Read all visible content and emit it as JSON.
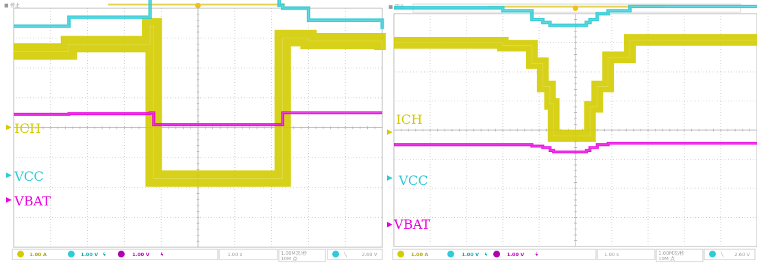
{
  "chart_data": [
    {
      "type": "line",
      "status_text": "■ 停止",
      "channel_labels": [
        "ICH",
        "VCC",
        "VBAT"
      ],
      "readout": {
        "ch1": "1.00 A",
        "ch2": "1.00 V",
        "ch3": "1.00 V",
        "timebase": "1.00 s",
        "rate_line1": "1.00M次/秒",
        "rate_line2": "10M 点",
        "trigger_level": "2.60 V"
      },
      "x": [
        -5.0,
        -3.5,
        -1.3,
        -1.2,
        -0.3,
        0.0,
        0.5,
        2.2,
        2.3,
        3.0,
        5.0
      ],
      "series": [
        {
          "name": "ICH",
          "color": "#d4cc00",
          "band": 0.55,
          "values": [
            2.55,
            2.8,
            3.4,
            -1.7,
            -1.7,
            -1.7,
            -1.7,
            -1.7,
            3.0,
            2.9,
            2.6
          ]
        },
        {
          "name": "VCC",
          "color": "#2fcbd6",
          "band": 0.12,
          "values": [
            3.4,
            3.7,
            4.7,
            4.9,
            5.1,
            5.2,
            5.0,
            4.1,
            4.0,
            3.6,
            3.3
          ]
        },
        {
          "name": "VBAT",
          "color": "#e800e0",
          "band": 0.1,
          "values": [
            0.45,
            0.47,
            0.5,
            0.1,
            0.1,
            0.1,
            0.1,
            0.1,
            0.5,
            0.5,
            0.5
          ]
        }
      ]
    },
    {
      "type": "line",
      "status_text": "■ 预览",
      "channel_labels": [
        "ICH",
        "VCC",
        "VBAT"
      ],
      "readout": {
        "ch1": "1.00 A",
        "ch2": "1.00 V",
        "ch3": "1.00 V",
        "timebase": "1.00 s",
        "rate_line1": "1.00M次/秒",
        "rate_line2": "10M 点",
        "trigger_level": "2.60 V"
      },
      "x": [
        -5.0,
        -2.0,
        -1.2,
        -0.9,
        -0.7,
        -0.6,
        0.3,
        0.4,
        0.6,
        0.9,
        1.5,
        5.0
      ],
      "series": [
        {
          "name": "ICH",
          "color": "#d4cc00",
          "band": 0.4,
          "values": [
            3.0,
            2.9,
            2.3,
            1.5,
            0.9,
            -0.2,
            -0.2,
            0.8,
            1.5,
            2.5,
            3.1,
            3.1
          ]
        },
        {
          "name": "VCC",
          "color": "#2fcbd6",
          "band": 0.12,
          "values": [
            4.2,
            4.1,
            3.8,
            3.7,
            3.6,
            3.6,
            3.7,
            3.8,
            4.0,
            4.1,
            4.25,
            4.25
          ]
        },
        {
          "name": "VBAT",
          "color": "#e800e0",
          "band": 0.1,
          "values": [
            -0.5,
            -0.5,
            -0.55,
            -0.6,
            -0.7,
            -0.75,
            -0.7,
            -0.6,
            -0.5,
            -0.45,
            -0.45,
            -0.45
          ]
        }
      ]
    }
  ]
}
